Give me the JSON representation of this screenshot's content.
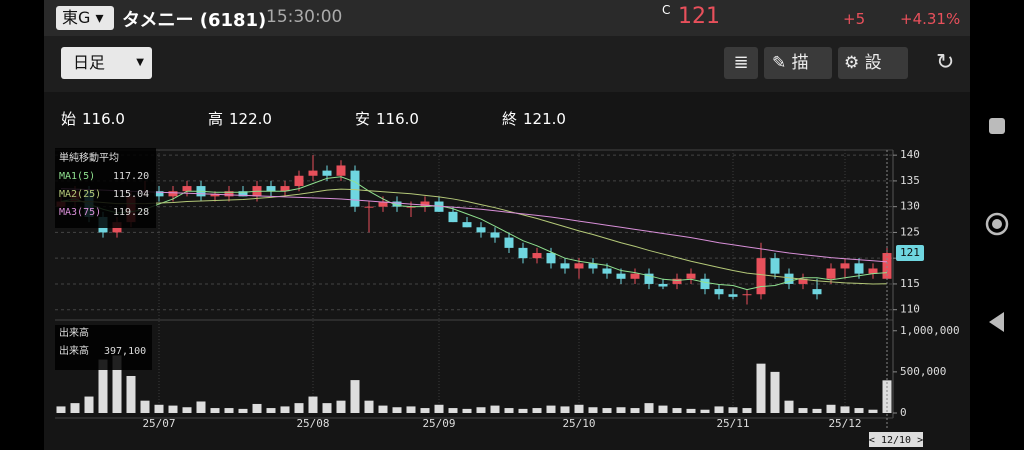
{
  "header": {
    "market": "東G",
    "name": "タメニー (6181)",
    "time": "15:30:00",
    "price_flag": "C",
    "price": "121",
    "change": "+5",
    "change_pct": "+4.31%"
  },
  "toolbar": {
    "period": "日足",
    "draw": "描画",
    "settings": "設定"
  },
  "summary": [
    {
      "label": "始",
      "value": "116.0"
    },
    {
      "label": "高",
      "value": "122.0"
    },
    {
      "label": "安",
      "value": "116.0"
    },
    {
      "label": "終",
      "value": "121.0"
    }
  ],
  "chart_data": {
    "type": "candlestick",
    "legend_title": "単純移動平均",
    "grid": true,
    "up_color": "#e8505b",
    "down_color": "#6fd6e0",
    "volume_color": "#dddddd",
    "categories": [
      null,
      null,
      null,
      null,
      null,
      null,
      null,
      "25/07",
      null,
      null,
      null,
      null,
      null,
      null,
      null,
      null,
      null,
      null,
      "25/08",
      null,
      null,
      null,
      null,
      null,
      null,
      null,
      null,
      "25/09",
      null,
      null,
      null,
      null,
      null,
      null,
      null,
      null,
      null,
      "25/10",
      null,
      null,
      null,
      null,
      null,
      null,
      null,
      null,
      null,
      null,
      "25/11",
      null,
      null,
      null,
      null,
      null,
      null,
      null,
      "25/12",
      null,
      null,
      null
    ],
    "open": [
      130,
      131,
      133,
      128,
      125,
      127,
      133,
      133,
      132,
      133,
      134,
      132,
      132,
      133,
      132,
      134,
      133,
      134,
      136,
      137,
      136,
      137,
      130,
      130,
      131,
      130,
      130,
      131,
      129,
      127,
      126,
      125,
      124,
      122,
      120,
      121,
      119,
      118,
      119,
      118,
      117,
      116,
      117,
      115,
      115,
      116,
      116,
      114,
      113,
      113,
      113,
      120,
      117,
      115,
      114,
      116,
      118,
      119,
      117,
      116
    ],
    "high": [
      132,
      134,
      134,
      129,
      128,
      133,
      135,
      134,
      134,
      135,
      135,
      133,
      134,
      134,
      135,
      135,
      135,
      137,
      140,
      138,
      139,
      138,
      131,
      132,
      132,
      131,
      132,
      132,
      130,
      128,
      127,
      126,
      125,
      123,
      122,
      122,
      120,
      120,
      120,
      119,
      118,
      118,
      118,
      116,
      117,
      118,
      117,
      115,
      114,
      114,
      123,
      121,
      118,
      117,
      116,
      119,
      120,
      120,
      119,
      122
    ],
    "low": [
      129,
      130,
      127,
      124,
      124,
      126,
      132,
      131,
      131,
      132,
      131,
      131,
      131,
      132,
      131,
      132,
      132,
      133,
      135,
      135,
      135,
      129,
      125,
      129,
      129,
      128,
      129,
      129,
      127,
      126,
      124,
      123,
      121,
      119,
      119,
      118,
      117,
      116,
      117,
      116,
      115,
      115,
      114,
      114,
      114,
      115,
      113,
      112,
      112,
      111,
      112,
      116,
      114,
      114,
      112,
      115,
      116,
      116,
      116,
      116
    ],
    "close": [
      131,
      133,
      128,
      125,
      127,
      132,
      133,
      132,
      133,
      134,
      132,
      132.5,
      133,
      132,
      134,
      133,
      134,
      136,
      137,
      136,
      138,
      130,
      130,
      131,
      130,
      130,
      131,
      129,
      127,
      126,
      125,
      124,
      122,
      120,
      121,
      119,
      118,
      119,
      118,
      117,
      116,
      117,
      115,
      114.5,
      116,
      117,
      114,
      113,
      112.5,
      113,
      120,
      117,
      115,
      116,
      113,
      118,
      119,
      117,
      118,
      121
    ],
    "volume": [
      80000,
      120000,
      200000,
      650000,
      700000,
      450000,
      150000,
      100000,
      90000,
      70000,
      140000,
      60000,
      60000,
      50000,
      110000,
      60000,
      80000,
      120000,
      200000,
      120000,
      150000,
      400000,
      150000,
      90000,
      70000,
      80000,
      60000,
      100000,
      60000,
      50000,
      70000,
      90000,
      60000,
      50000,
      60000,
      90000,
      80000,
      100000,
      70000,
      60000,
      70000,
      60000,
      120000,
      90000,
      60000,
      50000,
      40000,
      80000,
      70000,
      60000,
      600000,
      500000,
      150000,
      60000,
      50000,
      100000,
      80000,
      60000,
      40000,
      397100
    ],
    "ylim": [
      108,
      141
    ],
    "yticks": [
      110,
      115,
      120,
      125,
      130,
      135,
      140
    ],
    "volume_ylim": [
      0,
      1070000
    ],
    "volume_yticks": [
      {
        "value": 1000000,
        "label": "1,000,000"
      },
      {
        "value": 500000,
        "label": "500,000"
      },
      0
    ],
    "volume_legend": {
      "title": "出来高",
      "name": "出来高",
      "value": {
        "value": 397100,
        "label": "397,100"
      }
    },
    "cursor_date": "< 12/10 >",
    "series": [
      {
        "name": "MA1(5)",
        "color": "#8fe08f",
        "last": {
          "value": 117.2,
          "label": "117.20"
        },
        "values": [
          131,
          131.5,
          130.5,
          129.5,
          128.8,
          129,
          129.5,
          130.5,
          131.5,
          133,
          133,
          132.8,
          132.8,
          132.8,
          133,
          133,
          133,
          133.5,
          134.5,
          135.5,
          135.8,
          134.8,
          133,
          131.5,
          130.2,
          130,
          130,
          130.2,
          129.6,
          128.6,
          127.6,
          126.2,
          124.8,
          123.4,
          122.4,
          121.2,
          120,
          119.4,
          119,
          118.6,
          117.6,
          117.2,
          116.6,
          115.9,
          115.7,
          115.9,
          115.3,
          114.9,
          114.7,
          113.9,
          114.5,
          114.7,
          115.5,
          116.2,
          116.2,
          115.8,
          116.2,
          116.6,
          117,
          117.2
        ]
      },
      {
        "name": "MA2(25)",
        "color": "#b4c878",
        "last": {
          "value": 115.04,
          "label": "115.04"
        },
        "values": [
          131,
          131,
          131,
          130.8,
          130.6,
          130.6,
          130.6,
          130.7,
          130.8,
          131,
          131.1,
          131.2,
          131.3,
          131.4,
          131.6,
          131.8,
          132.1,
          132.4,
          132.8,
          133.2,
          133.4,
          133.3,
          133.1,
          132.9,
          132.7,
          132.5,
          132.2,
          131.9,
          131.5,
          131,
          130.4,
          129.8,
          129.1,
          128.4,
          127.7,
          126.9,
          126.1,
          125.3,
          124.6,
          123.8,
          123,
          122.3,
          121.5,
          120.8,
          120.1,
          119.4,
          118.8,
          118.2,
          117.6,
          117.1,
          116.8,
          116.5,
          116.2,
          115.9,
          115.6,
          115.4,
          115.2,
          115.1,
          115.0,
          115.04
        ]
      },
      {
        "name": "MA3(75)",
        "color": "#d88fd8",
        "last": {
          "value": 119.28,
          "label": "119.28"
        },
        "values": [
          133.5,
          133.4,
          133.3,
          133.2,
          133.1,
          133,
          132.9,
          132.8,
          132.7,
          132.6,
          132.5,
          132.4,
          132.3,
          132.2,
          132.1,
          132,
          131.9,
          131.8,
          131.7,
          131.6,
          131.5,
          131.3,
          131.1,
          130.9,
          130.7,
          130.5,
          130.3,
          130.1,
          129.9,
          129.7,
          129.5,
          129.2,
          128.9,
          128.6,
          128.3,
          128,
          127.6,
          127.2,
          126.8,
          126.4,
          126,
          125.6,
          125.2,
          124.8,
          124.4,
          124,
          123.5,
          123,
          122.6,
          122.2,
          121.8,
          121.4,
          121,
          120.7,
          120.4,
          120.1,
          119.9,
          119.7,
          119.5,
          119.28
        ]
      }
    ]
  }
}
